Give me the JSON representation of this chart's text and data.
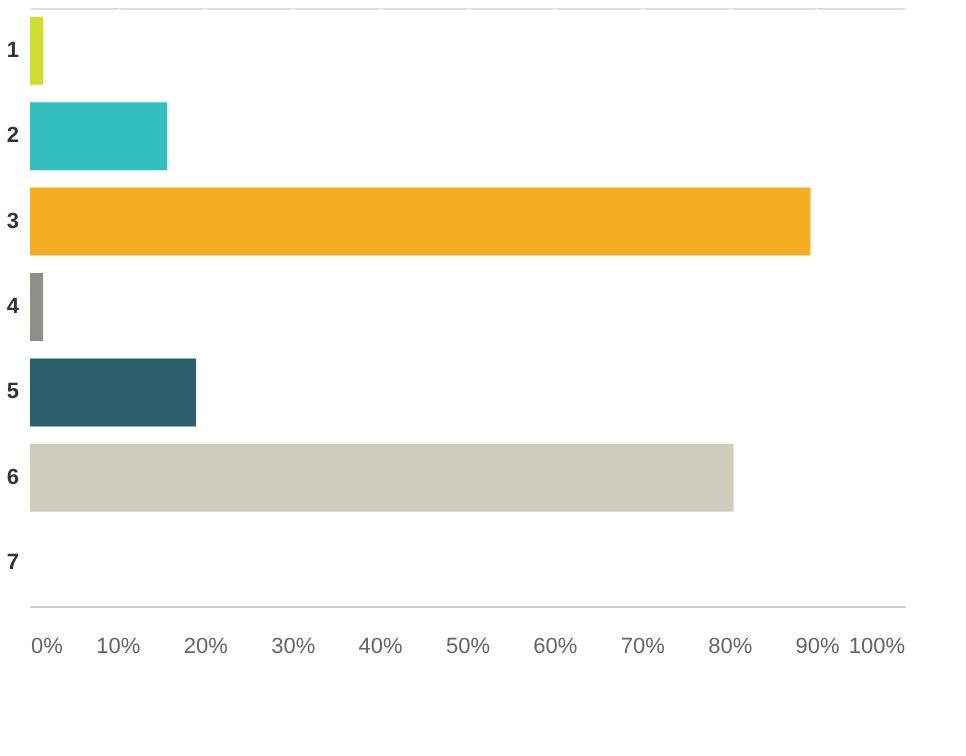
{
  "chart_data": {
    "type": "bar",
    "orientation": "horizontal",
    "categories": [
      "1",
      "2",
      "3",
      "4",
      "5",
      "6",
      "7"
    ],
    "values": [
      1.5,
      15.7,
      89.3,
      1.5,
      19,
      80.5,
      0
    ],
    "colors": [
      "#d0dc2e",
      "#33bfbf",
      "#f4ae23",
      "#8e8f87",
      "#2b5f6b",
      "#cecebf",
      "#999999"
    ],
    "xlim": [
      0,
      100
    ],
    "xticks": [
      {
        "value": 0,
        "label": "0%"
      },
      {
        "value": 10,
        "label": "10%"
      },
      {
        "value": 20,
        "label": "20%"
      },
      {
        "value": 30,
        "label": "30%"
      },
      {
        "value": 40,
        "label": "40%"
      },
      {
        "value": 50,
        "label": "50%"
      },
      {
        "value": 60,
        "label": "60%"
      },
      {
        "value": 70,
        "label": "70%"
      },
      {
        "value": 80,
        "label": "80%"
      },
      {
        "value": 90,
        "label": "90%"
      },
      {
        "value": 100,
        "label": "100%"
      }
    ],
    "grid": "x"
  }
}
